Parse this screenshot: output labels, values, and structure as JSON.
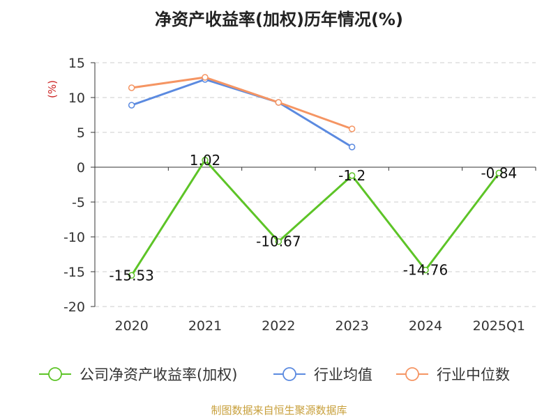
{
  "chart_data": {
    "type": "line",
    "title": "净资产收益率(加权)历年情况(%)",
    "ylabel": "(%)",
    "xlabel": "",
    "categories": [
      "2020",
      "2021",
      "2022",
      "2023",
      "2024",
      "2025Q1"
    ],
    "ylim": [
      -20,
      15
    ],
    "yticks": [
      15,
      10,
      5,
      0,
      -5,
      -10,
      -15,
      -20
    ],
    "grid": true,
    "legend_position": "bottom",
    "series": [
      {
        "name": "公司净资产收益率(加权)",
        "color": "#5dc427",
        "values": [
          -15.53,
          1.02,
          -10.67,
          -1.2,
          -14.76,
          -0.84
        ],
        "data_labels": [
          "-15.53",
          "1.02",
          "-10.67",
          "-1.2",
          "-14.76",
          "-0.84"
        ]
      },
      {
        "name": "行业均值",
        "color": "#5b8ae0",
        "values": [
          8.9,
          12.6,
          9.3,
          2.9,
          null,
          null
        ]
      },
      {
        "name": "行业中位数",
        "color": "#f59563",
        "values": [
          11.4,
          12.9,
          9.3,
          5.5,
          null,
          null
        ]
      }
    ]
  },
  "colors": {
    "ylabel": "#cc2222",
    "source": "#c8a03c",
    "axis": "#333333",
    "grid": "#cccccc"
  },
  "source_note": "制图数据来自恒生聚源数据库"
}
